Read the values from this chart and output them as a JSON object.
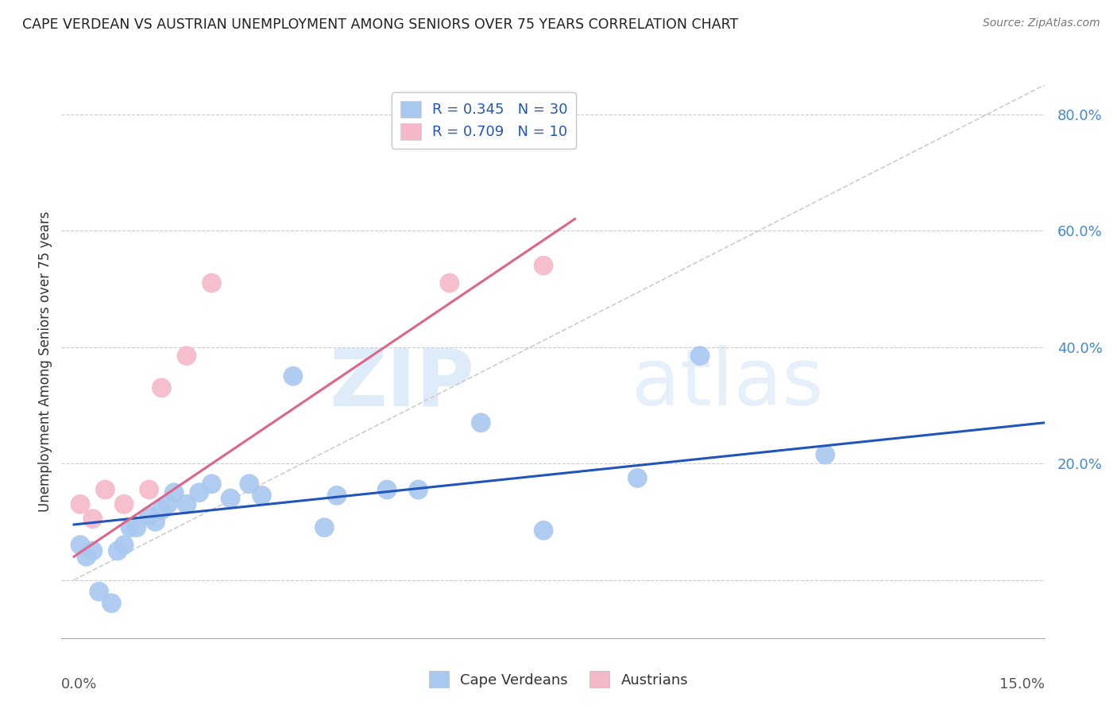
{
  "title": "CAPE VERDEAN VS AUSTRIAN UNEMPLOYMENT AMONG SENIORS OVER 75 YEARS CORRELATION CHART",
  "source": "Source: ZipAtlas.com",
  "ylabel": "Unemployment Among Seniors over 75 years",
  "cape_verdean_color": "#a8c8f0",
  "austrian_color": "#f5b8c8",
  "cv_line_color": "#2255bb",
  "au_line_color": "#dd6688",
  "diagonal_color": "#cccccc",
  "legend_label_cv": "R = 0.345   N = 30",
  "legend_label_au": "R = 0.709   N = 10",
  "legend_label_cv_bottom": "Cape Verdeans",
  "legend_label_au_bottom": "Austrians",
  "watermark_zip": "ZIP",
  "watermark_atlas": "atlas",
  "xlim": [
    -0.002,
    0.155
  ],
  "ylim": [
    -0.1,
    0.85
  ],
  "ytick_vals": [
    0.0,
    0.2,
    0.4,
    0.6,
    0.8
  ],
  "ytick_labels": [
    "",
    "20.0%",
    "40.0%",
    "60.0%",
    "80.0%"
  ],
  "cv_scatter_x": [
    0.001,
    0.002,
    0.003,
    0.004,
    0.006,
    0.007,
    0.008,
    0.009,
    0.01,
    0.012,
    0.013,
    0.014,
    0.015,
    0.016,
    0.018,
    0.02,
    0.022,
    0.025,
    0.028,
    0.03,
    0.035,
    0.04,
    0.042,
    0.05,
    0.055,
    0.065,
    0.075,
    0.09,
    0.1,
    0.12
  ],
  "cv_scatter_y": [
    0.06,
    0.04,
    0.05,
    -0.02,
    -0.04,
    0.05,
    0.06,
    0.09,
    0.09,
    0.11,
    0.1,
    0.12,
    0.13,
    0.15,
    0.13,
    0.15,
    0.165,
    0.14,
    0.165,
    0.145,
    0.35,
    0.09,
    0.145,
    0.155,
    0.155,
    0.27,
    0.085,
    0.175,
    0.385,
    0.215
  ],
  "au_scatter_x": [
    0.001,
    0.003,
    0.005,
    0.008,
    0.012,
    0.014,
    0.018,
    0.022,
    0.06,
    0.075
  ],
  "au_scatter_y": [
    0.13,
    0.105,
    0.155,
    0.13,
    0.155,
    0.33,
    0.385,
    0.51,
    0.51,
    0.54
  ],
  "cv_line_x": [
    0.0,
    0.155
  ],
  "cv_line_y": [
    0.095,
    0.27
  ],
  "au_line_x": [
    0.0,
    0.08
  ],
  "au_line_y": [
    0.04,
    0.62
  ],
  "diag_line_x": [
    0.0,
    0.155
  ],
  "diag_line_y": [
    0.0,
    0.155
  ]
}
